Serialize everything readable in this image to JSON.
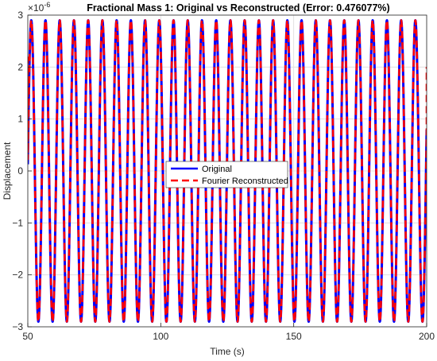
{
  "chart_data": {
    "type": "line",
    "title": "Fractional Mass 1: Original vs Reconstructed (Error: 0.476077%)",
    "xlabel": "Time (s)",
    "ylabel": "Displacement",
    "xlim": [
      50,
      200
    ],
    "ylim": [
      -3e-06,
      3e-06
    ],
    "y_multiplier": "×10",
    "y_multiplier_exponent": "-6",
    "x_ticks": [
      50,
      100,
      150,
      200
    ],
    "x_tick_labels": [
      "50",
      "100",
      "150",
      "200"
    ],
    "y_ticks": [
      -3,
      -2,
      -1,
      0,
      1,
      2,
      3
    ],
    "y_tick_labels": [
      "−3",
      "−2",
      "−1",
      "0",
      "1",
      "2",
      "3"
    ],
    "grid": true,
    "legend_position": "center",
    "series": [
      {
        "name": "Original",
        "color": "#0000ff",
        "style": "solid",
        "signal": {
          "kind": "sinusoid",
          "amplitude": 2.9e-06,
          "period": 5.35,
          "peak_time": 51.3,
          "t_start": 50,
          "t_end": 200
        }
      },
      {
        "name": "Fourier Reconstructed",
        "color": "#ff0000",
        "style": "dashed",
        "signal": {
          "kind": "sinusoid",
          "amplitude": 2.9e-06,
          "period": 5.35,
          "peak_time": 51.3,
          "t_start": 50,
          "t_end": 200
        },
        "edge_values": {
          "start": 2.2e-06,
          "end": 2e-06
        }
      }
    ]
  }
}
